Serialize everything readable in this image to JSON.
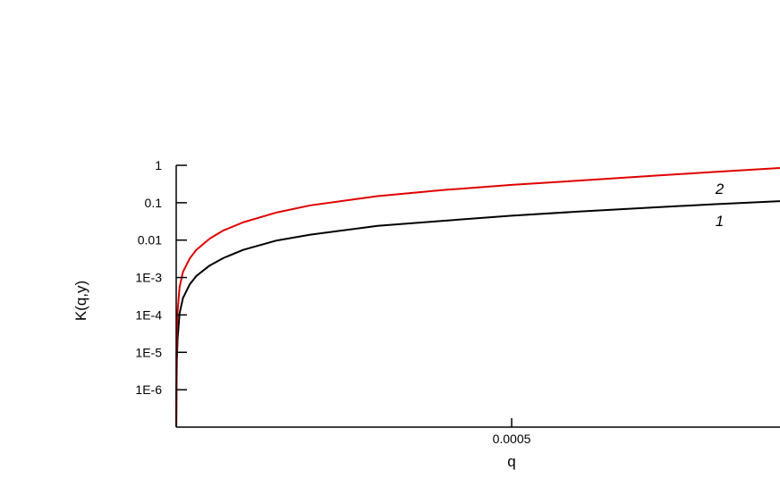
{
  "chart_data": {
    "type": "line",
    "title": "",
    "xlabel": "q",
    "ylabel": "K(q,y)",
    "yscale": "log",
    "xlim": [
      0,
      0.0009
    ],
    "ylim": [
      1e-07,
      1
    ],
    "x_ticks": [
      {
        "value": 0.0005,
        "label": "0.0005"
      }
    ],
    "y_ticks": [
      {
        "value": 1,
        "label": "1"
      },
      {
        "value": 0.1,
        "label": "0.1"
      },
      {
        "value": 0.01,
        "label": "0.01"
      },
      {
        "value": 0.001,
        "label": "1E-3"
      },
      {
        "value": 0.0001,
        "label": "1E-4"
      },
      {
        "value": 1e-05,
        "label": "1E-5"
      },
      {
        "value": 1e-06,
        "label": "1E-6"
      }
    ],
    "grid": false,
    "legend": "none",
    "series": [
      {
        "name": "1",
        "color": "#000000",
        "x": [
          1e-07,
          5e-07,
          1e-06,
          2e-06,
          5e-06,
          1e-05,
          2e-05,
          3e-05,
          5e-05,
          7e-05,
          0.0001,
          0.00015,
          0.0002,
          0.0003,
          0.0004,
          0.0005,
          0.0006,
          0.0007,
          0.0008,
          0.0009
        ],
        "values": [
          1e-07,
          1.5e-06,
          6e-06,
          2.2e-05,
          0.00011,
          0.00028,
          0.00065,
          0.0011,
          0.0021,
          0.0033,
          0.0055,
          0.0098,
          0.014,
          0.024,
          0.033,
          0.045,
          0.058,
          0.073,
          0.091,
          0.11
        ]
      },
      {
        "name": "2",
        "color": "#e00000",
        "x": [
          1e-07,
          5e-07,
          1e-06,
          2e-06,
          5e-06,
          1e-05,
          2e-05,
          3e-05,
          5e-05,
          7e-05,
          0.0001,
          0.00015,
          0.0002,
          0.0003,
          0.0004,
          0.0005,
          0.0006,
          0.0007,
          0.0008,
          0.0009
        ],
        "values": [
          1e-07,
          8e-06,
          4e-05,
          0.00012,
          0.00055,
          0.0014,
          0.0032,
          0.0055,
          0.011,
          0.018,
          0.03,
          0.055,
          0.085,
          0.15,
          0.22,
          0.3,
          0.39,
          0.51,
          0.66,
          0.85
        ]
      }
    ]
  }
}
